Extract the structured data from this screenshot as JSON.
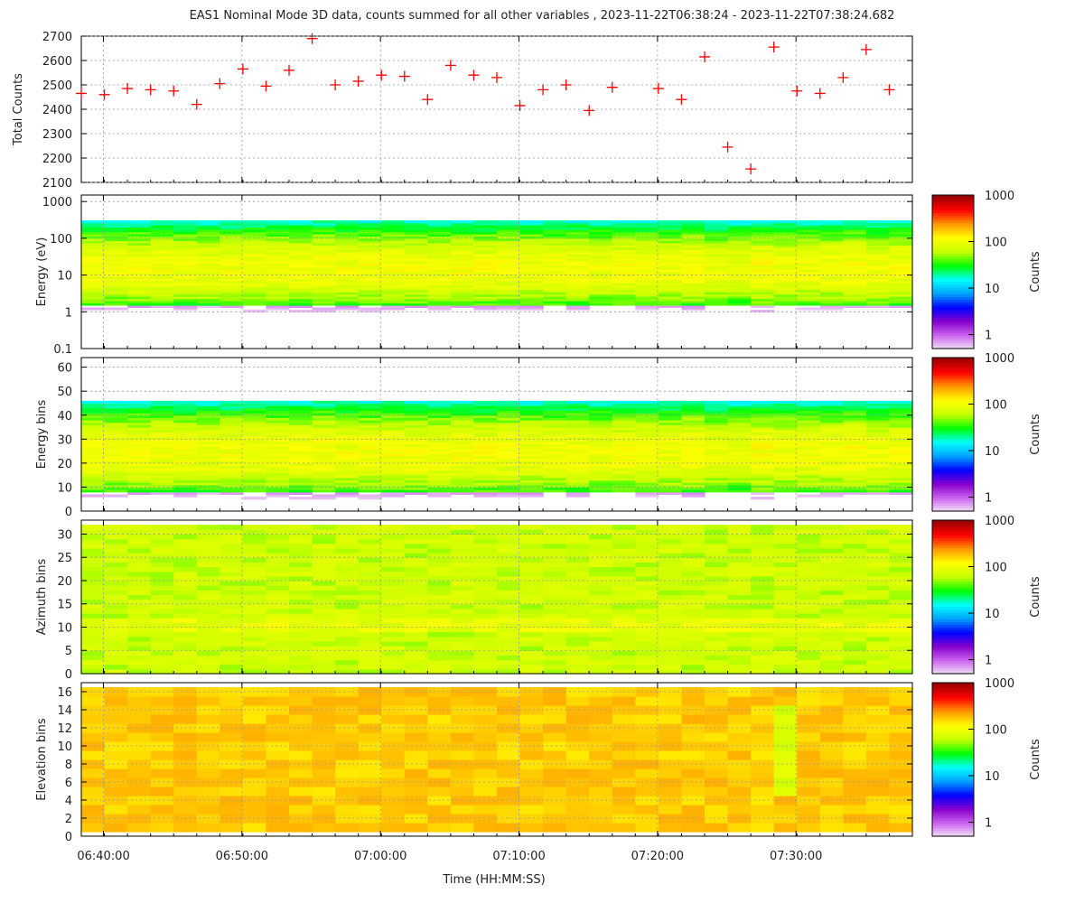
{
  "chart_data": {
    "title": "EAS1  Nominal Mode 3D data, counts summed for all other variables ,  2023-11-22T06:38:24 - 2023-11-22T07:38:24.682",
    "xlabel": "Time (HH:MM:SS)",
    "x_range_seconds_from_06_38_24": [
      0,
      3600
    ],
    "x_tick_labels": [
      "06:40:00",
      "06:50:00",
      "07:00:00",
      "07:10:00",
      "07:20:00",
      "07:30:00"
    ],
    "x_tick_seconds": [
      96,
      696,
      1296,
      1896,
      2496,
      3096
    ],
    "time_step_seconds": 100,
    "colorbar": {
      "label": "Counts",
      "scale": "log",
      "range": [
        0.5,
        1000
      ],
      "tick_labels": [
        "1",
        "10",
        "100",
        "1000"
      ],
      "tick_values": [
        1,
        10,
        100,
        1000
      ],
      "colormap": [
        "#f4e6f6",
        "#cc66ee",
        "#8800cc",
        "#0000ff",
        "#00a0ff",
        "#00ffff",
        "#00ff00",
        "#c8ff00",
        "#ffff00",
        "#ff9900",
        "#ff0000",
        "#990000"
      ]
    },
    "panels": [
      {
        "id": "total",
        "type": "scatter",
        "ylabel": "Total Counts",
        "ylim": [
          2100,
          2700
        ],
        "y_tick_labels": [
          "2100",
          "2200",
          "2300",
          "2400",
          "2500",
          "2600",
          "2700"
        ],
        "marker": "+",
        "color": "#ff0000",
        "x_times": [
          "06:38:24",
          "06:40:04",
          "06:41:44",
          "06:43:24",
          "06:45:04",
          "06:46:44",
          "06:48:24",
          "06:50:04",
          "06:51:44",
          "06:53:24",
          "06:55:04",
          "06:56:44",
          "06:58:24",
          "07:00:04",
          "07:01:44",
          "07:03:24",
          "07:05:04",
          "07:06:44",
          "07:08:24",
          "07:10:04",
          "07:11:44",
          "07:13:24",
          "07:15:04",
          "07:16:44",
          "07:20:04",
          "07:21:44",
          "07:23:24",
          "07:25:04",
          "07:26:44",
          "07:28:24",
          "07:30:04",
          "07:31:44",
          "07:33:24",
          "07:35:04",
          "07:36:44"
        ],
        "x": [
          0,
          100,
          200,
          300,
          400,
          500,
          600,
          700,
          800,
          900,
          1000,
          1100,
          1200,
          1300,
          1400,
          1500,
          1600,
          1700,
          1800,
          1900,
          2000,
          2100,
          2200,
          2300,
          2500,
          2600,
          2700,
          2800,
          2900,
          3000,
          3100,
          3200,
          3300,
          3400,
          3500
        ],
        "values": [
          2465,
          2460,
          2485,
          2480,
          2475,
          2420,
          2505,
          2565,
          2495,
          2560,
          2690,
          2500,
          2515,
          2540,
          2535,
          2440,
          2580,
          2540,
          2530,
          2415,
          2480,
          2500,
          2395,
          2490,
          2485,
          2440,
          2615,
          2245,
          2155,
          2655,
          2475,
          2465,
          2530,
          2645,
          2480
        ]
      },
      {
        "id": "energy",
        "type": "heatmap",
        "ylabel": "Energy (eV)",
        "yscale": "log",
        "ylim": [
          0.1,
          1500
        ],
        "y_tick_labels": [
          "0.1",
          "1",
          "10",
          "100",
          "1000"
        ],
        "y_tick_values": [
          0.1,
          1,
          10,
          100,
          1000
        ],
        "bins": 64,
        "bin_to_value": "2.0 * 1.15^(bin-10) eV"
      },
      {
        "id": "energy_bins",
        "type": "heatmap",
        "ylabel": "Energy bins",
        "ylim": [
          0,
          64
        ],
        "y_tick_labels": [
          "0",
          "10",
          "20",
          "30",
          "40",
          "50",
          "60"
        ],
        "y_tick_values": [
          0,
          10,
          20,
          30,
          40,
          50,
          60
        ],
        "bins": 64,
        "profile_peak_counts": 100,
        "profile_band_bins": [
          8,
          45
        ]
      },
      {
        "id": "azimuth",
        "type": "heatmap",
        "ylabel": "Azimuth bins",
        "ylim": [
          0,
          33
        ],
        "y_tick_labels": [
          "0",
          "5",
          "10",
          "15",
          "20",
          "25",
          "30"
        ],
        "y_tick_values": [
          0,
          5,
          10,
          15,
          20,
          25,
          30
        ],
        "bins": 32,
        "typical_counts": 70
      },
      {
        "id": "elevation",
        "type": "heatmap",
        "ylabel": "Elevation bins",
        "ylim": [
          0,
          17
        ],
        "y_tick_labels": [
          "0",
          "2",
          "4",
          "6",
          "8",
          "10",
          "12",
          "14",
          "16"
        ],
        "y_tick_values": [
          0,
          2,
          4,
          6,
          8,
          10,
          12,
          14,
          16
        ],
        "bins": 16,
        "typical_counts": 180
      }
    ]
  }
}
